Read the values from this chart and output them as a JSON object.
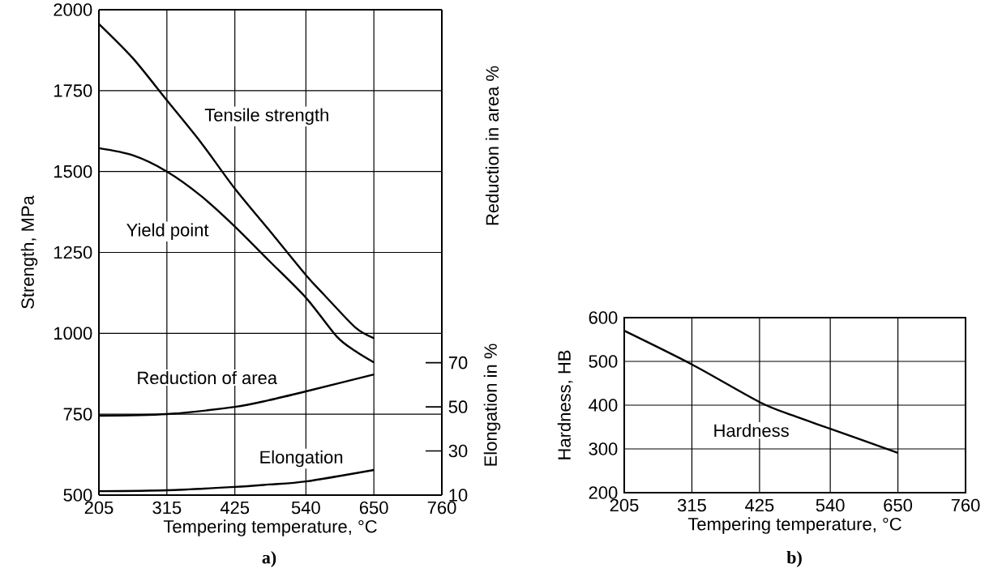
{
  "chart_data": [
    {
      "type": "line",
      "xlabel": "Tempering temperature, °C",
      "ylabel": "Strength, MPa",
      "y2label": "Elongation in %",
      "xlim": [
        205,
        760
      ],
      "xticks": [
        205,
        315,
        425,
        540,
        650,
        760
      ],
      "ylim": [
        500,
        2000
      ],
      "yticks": [
        500,
        750,
        1000,
        1250,
        1500,
        1750,
        2000
      ],
      "y2lim": [
        10,
        230
      ],
      "y2ticks": [
        10,
        30,
        50,
        70
      ],
      "grid": true,
      "marker": "none",
      "line_style": "solid",
      "series": [
        {
          "name": "Tensile strength",
          "color": "#000000",
          "x": [
            205,
            260,
            315,
            370,
            425,
            480,
            540,
            570,
            620,
            650
          ],
          "values": [
            1956,
            1850,
            1720,
            1590,
            1447,
            1320,
            1180,
            1118,
            1018,
            985
          ]
        },
        {
          "name": "Yield point",
          "color": "#000000",
          "x": [
            205,
            260,
            315,
            370,
            425,
            480,
            540,
            590,
            620,
            650
          ],
          "values": [
            1572,
            1550,
            1500,
            1425,
            1330,
            1225,
            1110,
            990,
            945,
            910
          ]
        },
        {
          "name": "Reduction of area",
          "color": "#000000",
          "axis": "y2",
          "x": [
            205,
            315,
            425,
            480,
            540,
            650
          ],
          "values": [
            46,
            46.7,
            50,
            53,
            57,
            64.7
          ]
        },
        {
          "name": "Elongation",
          "color": "#000000",
          "axis": "y2",
          "x": [
            205,
            315,
            425,
            480,
            540,
            650
          ],
          "values": [
            11.8,
            12.2,
            13.7,
            14.8,
            16.2,
            21.4
          ]
        }
      ],
      "annotations": [
        "Reduction in area %",
        "a)"
      ]
    },
    {
      "type": "line",
      "xlabel": "Tempering temperature, °C",
      "ylabel": "Hardness, HB",
      "xlim": [
        205,
        760
      ],
      "xticks": [
        205,
        315,
        425,
        540,
        650,
        760
      ],
      "ylim": [
        200,
        600
      ],
      "yticks": [
        200,
        300,
        400,
        500,
        600
      ],
      "grid": true,
      "marker": "none",
      "line_style": "solid",
      "series": [
        {
          "name": "Hardness",
          "color": "#000000",
          "x": [
            205,
            315,
            425,
            480,
            540,
            650
          ],
          "values": [
            570,
            493,
            407,
            376,
            346,
            291
          ]
        }
      ],
      "annotations": [
        "b)"
      ]
    }
  ]
}
